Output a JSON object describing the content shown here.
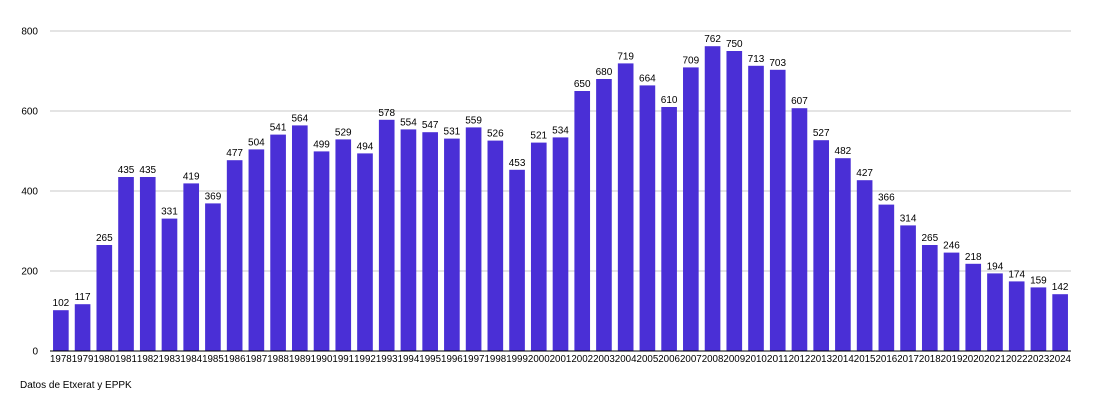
{
  "chart_data": {
    "type": "bar",
    "categories": [
      "1978",
      "1979",
      "1980",
      "1981",
      "1982",
      "1983",
      "1984",
      "1985",
      "1986",
      "1987",
      "1988",
      "1989",
      "1990",
      "1991",
      "1992",
      "1993",
      "1994",
      "1995",
      "1996",
      "1997",
      "1998",
      "1999",
      "2000",
      "2001",
      "2002",
      "2003",
      "2004",
      "2005",
      "2006",
      "2007",
      "2008",
      "2009",
      "2010",
      "2011",
      "2012",
      "2013",
      "2014",
      "2015",
      "2016",
      "2017",
      "2018",
      "2019",
      "2020",
      "2021",
      "2022",
      "2023",
      "2024"
    ],
    "values": [
      102,
      117,
      265,
      435,
      435,
      331,
      419,
      369,
      477,
      504,
      541,
      564,
      499,
      529,
      494,
      578,
      554,
      547,
      531,
      559,
      526,
      453,
      521,
      534,
      650,
      680,
      719,
      664,
      610,
      709,
      762,
      750,
      713,
      703,
      607,
      527,
      482,
      427,
      366,
      314,
      265,
      246,
      218,
      194,
      174,
      159,
      142
    ],
    "data_labels": [
      "102",
      "117",
      "265",
      "435",
      "435",
      "331",
      "419",
      "369",
      "477",
      "504",
      "541",
      "564",
      "499",
      "529",
      "494",
      "578",
      "554",
      "547",
      "531",
      "559",
      "526",
      "453",
      "521",
      "534",
      "650",
      "680",
      "719",
      "664",
      "610",
      "709",
      "762",
      "750",
      "713",
      "703",
      "607",
      "527",
      "482",
      "427",
      "366",
      "314",
      "265",
      "246",
      "218",
      "194",
      "174",
      "159",
      "142"
    ],
    "title": "",
    "xlabel": "",
    "ylabel": "",
    "ylim": [
      0,
      800
    ],
    "yticks": [
      0,
      200,
      400,
      600,
      800
    ],
    "ytick_labels": [
      "0",
      "200",
      "400",
      "600",
      "800"
    ],
    "grid": true,
    "bar_color": "#4a2fd6",
    "grid_color": "#c8c8c8",
    "source_note": "Datos de Etxerat y EPPK"
  }
}
